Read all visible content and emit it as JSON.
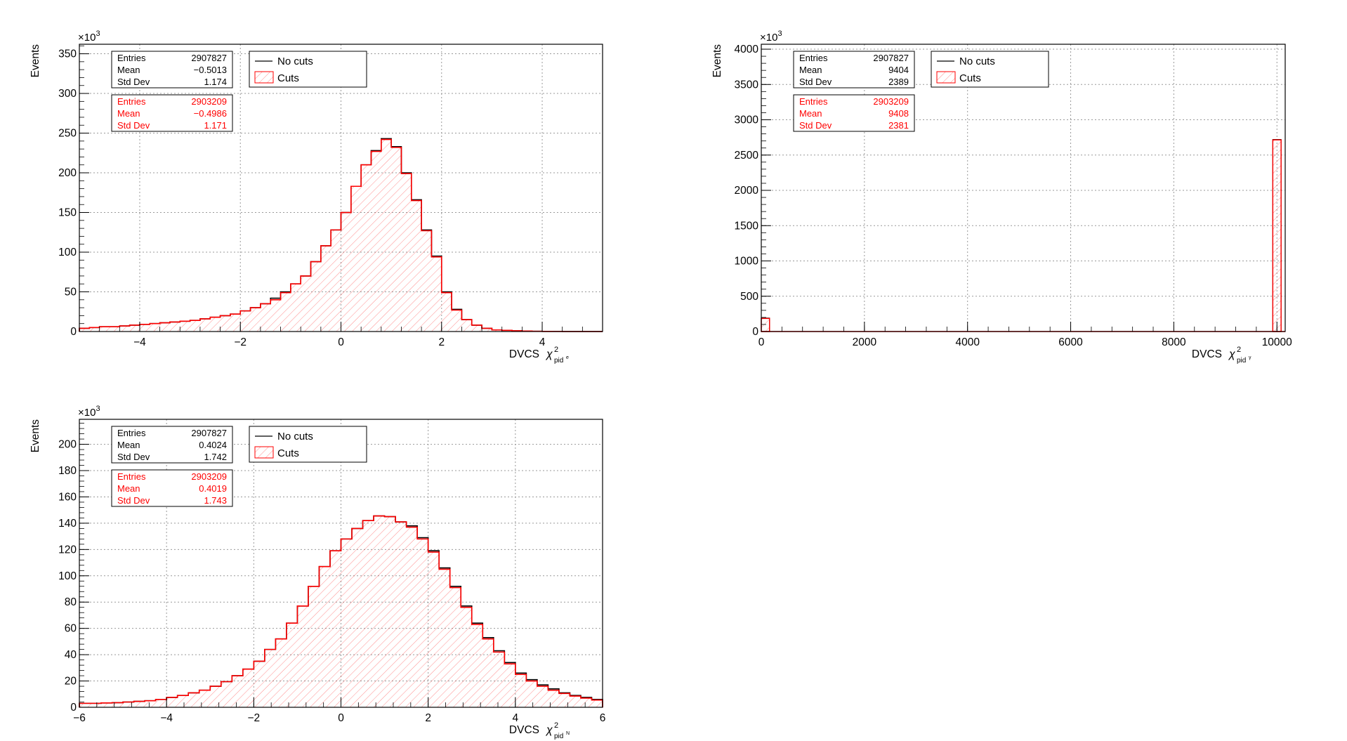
{
  "colors": {
    "no_cuts": "#000000",
    "cuts": "#ff0000",
    "grid": "#999999"
  },
  "chart_data": [
    {
      "type": "bar",
      "title": "",
      "xlabel": "DVCS",
      "xlabel_symbol": "χ",
      "xlabel_sup": "2",
      "xlabel_sub": "pid",
      "xlabel_subsub": "e",
      "ylabel": "Events",
      "y_multiplier": "×10",
      "y_multiplier_exp": "3",
      "xlim": [
        -5.2,
        5.2
      ],
      "ylim": [
        0,
        362
      ],
      "xticks": [
        -4,
        -2,
        0,
        2,
        4
      ],
      "xtick_labels": [
        "−4",
        "−2",
        "0",
        "2",
        "4"
      ],
      "yticks": [
        0,
        50,
        100,
        150,
        200,
        250,
        300,
        350
      ],
      "ytick_labels": [
        "0",
        "50",
        "100",
        "150",
        "200",
        "250",
        "300",
        "350"
      ],
      "grid": true,
      "bin_edges_start": -5.2,
      "bin_width": 0.2,
      "series": [
        {
          "name": "No cuts",
          "values": [
            4,
            5,
            6,
            6,
            7,
            8,
            9,
            10,
            11,
            12,
            13,
            14,
            16,
            18,
            20,
            22,
            26,
            30,
            35,
            42,
            50,
            60,
            70,
            88,
            108,
            128,
            150,
            183,
            210,
            228,
            243,
            233,
            200,
            166,
            128,
            95,
            50,
            28,
            15,
            8,
            4,
            2,
            1.5,
            1,
            0.6,
            0.3,
            0.2,
            0.1,
            0,
            0,
            0,
            0
          ]
        },
        {
          "name": "Cuts",
          "values": [
            4,
            5,
            6,
            6,
            7,
            8,
            9,
            10,
            11,
            12,
            13,
            14,
            16,
            18,
            20,
            22,
            26,
            30,
            35,
            40,
            49,
            60,
            70,
            88,
            108,
            128,
            150,
            183,
            210,
            227,
            242,
            232,
            199,
            165,
            127,
            94,
            49,
            27,
            15,
            8,
            4,
            2,
            1.5,
            1,
            0.6,
            0.3,
            0.2,
            0.1,
            0,
            0,
            0,
            0
          ]
        }
      ],
      "stats": {
        "no_cuts": {
          "Entries": "2907827",
          "Mean": "−0.5013",
          "Std Dev": "1.174"
        },
        "cuts": {
          "Entries": "2903209",
          "Mean": "−0.4986",
          "Std Dev": "1.171"
        }
      },
      "legend": {
        "no_cuts": "No cuts",
        "cuts": "Cuts",
        "position": "top-left"
      }
    },
    {
      "type": "bar",
      "title": "",
      "xlabel": "DVCS",
      "xlabel_symbol": "χ",
      "xlabel_sup": "2",
      "xlabel_sub": "pid",
      "xlabel_subsub": "γ",
      "ylabel": "Events",
      "y_multiplier": "×10",
      "y_multiplier_exp": "3",
      "xlim": [
        0,
        10160
      ],
      "ylim": [
        0,
        4070
      ],
      "xticks": [
        0,
        2000,
        4000,
        6000,
        8000,
        10000
      ],
      "xtick_labels": [
        "0",
        "2000",
        "4000",
        "6000",
        "8000",
        "10000"
      ],
      "yticks": [
        0,
        500,
        1000,
        1500,
        2000,
        2500,
        3000,
        3500,
        4000
      ],
      "ytick_labels": [
        "0",
        "500",
        "1000",
        "1500",
        "2000",
        "2500",
        "3000",
        "3500",
        "4000"
      ],
      "grid": true,
      "bin_edges_start": 0,
      "bin_width": 160,
      "bins": [
        {
          "x": 0,
          "no_cuts": 190,
          "cuts": 185
        },
        {
          "x": 9920,
          "no_cuts": 2720,
          "cuts": 2715
        }
      ],
      "stats": {
        "no_cuts": {
          "Entries": "2907827",
          "Mean": "9404",
          "Std Dev": "2389"
        },
        "cuts": {
          "Entries": "2903209",
          "Mean": "9408",
          "Std Dev": "2381"
        }
      },
      "legend": {
        "no_cuts": "No cuts",
        "cuts": "Cuts",
        "position": "top-left"
      }
    },
    {
      "type": "bar",
      "title": "",
      "xlabel": "DVCS",
      "xlabel_symbol": "χ",
      "xlabel_sup": "2",
      "xlabel_sub": "pid",
      "xlabel_subsub": "N",
      "ylabel": "Events",
      "y_multiplier": "×10",
      "y_multiplier_exp": "3",
      "xlim": [
        -6,
        6
      ],
      "ylim": [
        0,
        219
      ],
      "xticks": [
        -6,
        -4,
        -2,
        0,
        2,
        4,
        6
      ],
      "xtick_labels": [
        "−6",
        "−4",
        "−2",
        "0",
        "2",
        "4",
        "6"
      ],
      "yticks": [
        0,
        20,
        40,
        60,
        80,
        100,
        120,
        140,
        160,
        180,
        200
      ],
      "ytick_labels": [
        "0",
        "20",
        "40",
        "60",
        "80",
        "100",
        "120",
        "140",
        "160",
        "180",
        "200"
      ],
      "grid": true,
      "bin_edges_start": -6,
      "bin_width": 0.25,
      "series": [
        {
          "name": "No cuts",
          "values": [
            3,
            3,
            3.3,
            3.5,
            4,
            4.5,
            5,
            6,
            7.5,
            9,
            11,
            13,
            16,
            19.5,
            24,
            29,
            35,
            44,
            52,
            64,
            77,
            92,
            107,
            119,
            128,
            136,
            142,
            145.5,
            145,
            141,
            138,
            129,
            119,
            106,
            92,
            77,
            64,
            53,
            43,
            34,
            26,
            21,
            17,
            14,
            11,
            9,
            7.5,
            6
          ]
        },
        {
          "name": "Cuts",
          "values": [
            3,
            3,
            3.3,
            3.5,
            4,
            4.5,
            5,
            6,
            7.5,
            9,
            11,
            13,
            16,
            19.5,
            24,
            29,
            35,
            44,
            52,
            64,
            77,
            92,
            107,
            119,
            128,
            136,
            142,
            145.5,
            145,
            141,
            137,
            128,
            118,
            105,
            91,
            76,
            63,
            52,
            42,
            33,
            25,
            20,
            16,
            13,
            10.5,
            8.5,
            7,
            5.5
          ]
        }
      ],
      "stats": {
        "no_cuts": {
          "Entries": "2907827",
          "Mean": "0.4024",
          "Std Dev": "1.742"
        },
        "cuts": {
          "Entries": "2903209",
          "Mean": "0.4019",
          "Std Dev": "1.743"
        }
      },
      "legend": {
        "no_cuts": "No cuts",
        "cuts": "Cuts",
        "position": "top-left"
      }
    }
  ]
}
